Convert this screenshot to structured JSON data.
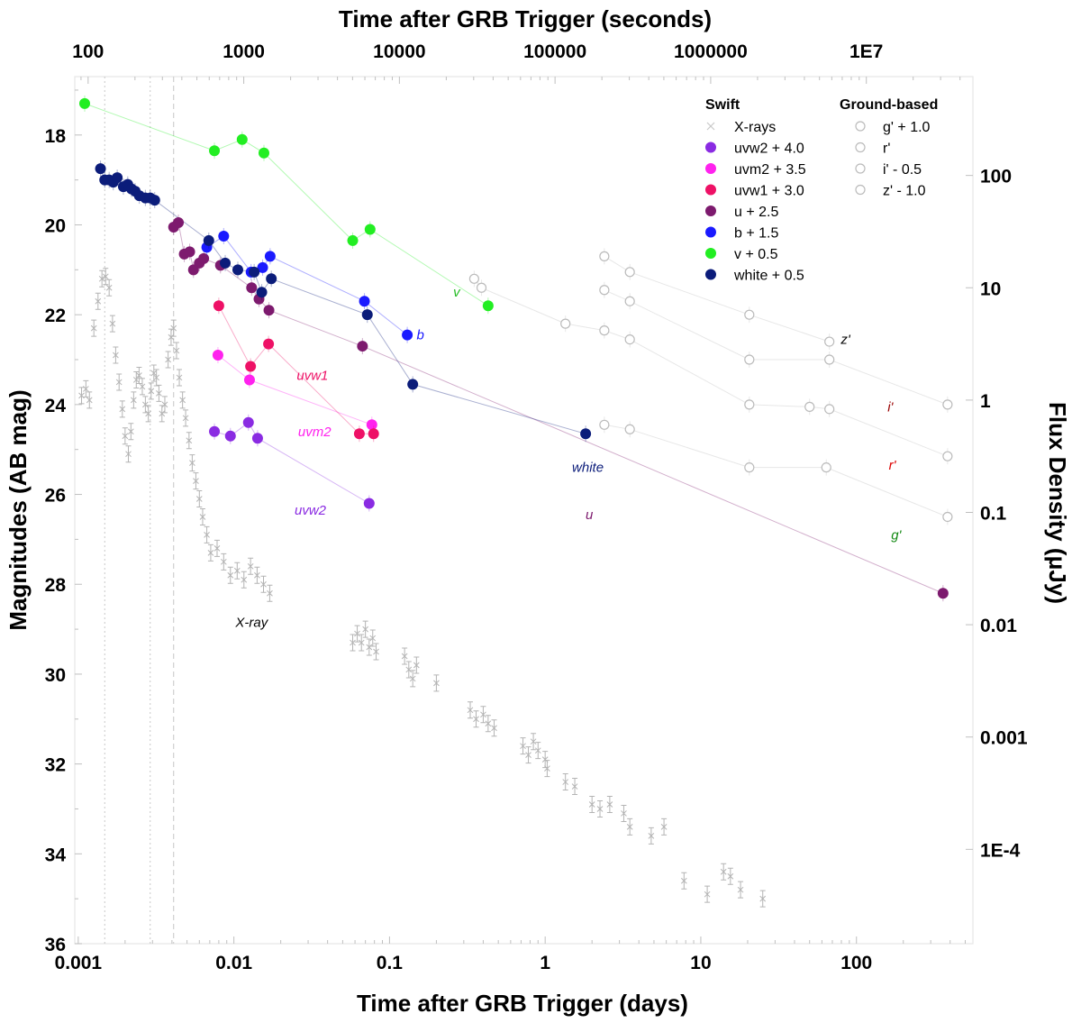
{
  "chart_data": {
    "type": "scatter",
    "title": "",
    "xlabel": "Time after GRB Trigger (days)",
    "x2label": "Time after GRB Trigger (seconds)",
    "ylabel": "Magnitudes (AB mag)",
    "y2label": "Flux Density (μJy)",
    "x_scale": "log",
    "xlim": [
      0.00095,
      560
    ],
    "ylim": [
      36,
      16.7
    ],
    "y_inverted": true,
    "x_ticks": [
      0.001,
      0.01,
      0.1,
      1,
      10,
      100
    ],
    "x_tick_labels": [
      "0.001",
      "0.01",
      "0.1",
      "1",
      "10",
      "100"
    ],
    "x2_ticks_seconds": [
      100,
      1000,
      10000,
      100000,
      1000000,
      10000000
    ],
    "x2_tick_labels": [
      "100",
      "1000",
      "10000",
      "100000",
      "1000000",
      "1E7"
    ],
    "y_ticks": [
      18,
      20,
      22,
      24,
      26,
      28,
      30,
      32,
      34,
      36
    ],
    "y_tick_labels": [
      "18",
      "20",
      "22",
      "24",
      "26",
      "28",
      "30",
      "32",
      "34",
      "36"
    ],
    "y2_ticks_mag": [
      18.9,
      21.4,
      23.9,
      26.4,
      28.9,
      31.4,
      33.9
    ],
    "y2_tick_labels": [
      "100",
      "10",
      "1",
      "0.1",
      "0.01",
      "0.001",
      "1E-4"
    ],
    "vertical_lines_days": [
      0.00148,
      0.0029,
      0.0041
    ],
    "legend_placement": "top-right",
    "legend_groups": [
      {
        "title": "Swift",
        "entries": [
          {
            "label": "X-rays",
            "marker": "x",
            "color": "#c8c8c8"
          },
          {
            "label": "uvw2 + 4.0",
            "marker": "filled-circle",
            "color": "#8a2be2"
          },
          {
            "label": "uvm2 + 3.5",
            "marker": "filled-circle",
            "color": "#ff22ee"
          },
          {
            "label": "uvw1 + 3.0",
            "marker": "filled-circle",
            "color": "#ee1166"
          },
          {
            "label": "u + 2.5",
            "marker": "filled-circle",
            "color": "#7d1a6e"
          },
          {
            "label": "b + 1.5",
            "marker": "filled-circle",
            "color": "#1a1aff"
          },
          {
            "label": "v + 0.5",
            "marker": "filled-circle",
            "color": "#22ee22"
          },
          {
            "label": "white + 0.5",
            "marker": "filled-circle",
            "color": "#0b1c7a"
          }
        ]
      },
      {
        "title": "Ground-based",
        "entries": [
          {
            "label": "g' + 1.0",
            "marker": "open-circle",
            "color": "#bbbbbb"
          },
          {
            "label": "r'",
            "marker": "open-circle",
            "color": "#bbbbbb"
          },
          {
            "label": "i' - 0.5",
            "marker": "open-circle",
            "color": "#bbbbbb"
          },
          {
            "label": "z' - 1.0",
            "marker": "open-circle",
            "color": "#bbbbbb"
          }
        ]
      }
    ],
    "series": [
      {
        "name": "uvw2 + 4.0",
        "color": "#8a2be2",
        "marker": "filled-circle",
        "points": [
          [
            0.0075,
            24.6
          ],
          [
            0.0095,
            24.7
          ],
          [
            0.0124,
            24.4
          ],
          [
            0.0142,
            24.75
          ],
          [
            0.074,
            26.2
          ]
        ]
      },
      {
        "name": "uvm2 + 3.5",
        "color": "#ff22ee",
        "marker": "filled-circle",
        "points": [
          [
            0.0079,
            22.9
          ],
          [
            0.0126,
            23.45
          ],
          [
            0.077,
            24.45
          ]
        ]
      },
      {
        "name": "uvw1 + 3.0",
        "color": "#ee1166",
        "marker": "filled-circle",
        "points": [
          [
            0.008,
            21.8
          ],
          [
            0.0128,
            23.15
          ],
          [
            0.0167,
            22.65
          ],
          [
            0.064,
            24.65
          ],
          [
            0.079,
            24.65
          ]
        ]
      },
      {
        "name": "u + 2.5",
        "color": "#7d1a6e",
        "marker": "filled-circle",
        "points": [
          [
            0.0041,
            20.05
          ],
          [
            0.0044,
            19.95
          ],
          [
            0.0048,
            20.65
          ],
          [
            0.0052,
            20.6
          ],
          [
            0.0055,
            21.0
          ],
          [
            0.006,
            20.85
          ],
          [
            0.0064,
            20.75
          ],
          [
            0.0082,
            20.9
          ],
          [
            0.013,
            21.4
          ],
          [
            0.0145,
            21.65
          ],
          [
            0.0168,
            21.9
          ],
          [
            0.067,
            22.7
          ],
          [
            360,
            28.2
          ]
        ]
      },
      {
        "name": "b + 1.5",
        "color": "#1a1aff",
        "marker": "filled-circle",
        "points": [
          [
            0.0067,
            20.5
          ],
          [
            0.0086,
            20.25
          ],
          [
            0.0129,
            21.05
          ],
          [
            0.0153,
            20.95
          ],
          [
            0.0171,
            20.7
          ],
          [
            0.069,
            21.7
          ],
          [
            0.13,
            22.45
          ]
        ]
      },
      {
        "name": "v + 0.5",
        "color": "#22ee22",
        "marker": "filled-circle",
        "points": [
          [
            0.0011,
            17.3
          ],
          [
            0.0075,
            18.35
          ],
          [
            0.0113,
            18.1
          ],
          [
            0.0156,
            18.4
          ],
          [
            0.058,
            20.35
          ],
          [
            0.075,
            20.1
          ],
          [
            0.43,
            21.8
          ]
        ]
      },
      {
        "name": "white + 0.5",
        "color": "#0b1c7a",
        "marker": "filled-circle",
        "points": [
          [
            0.00139,
            18.75
          ],
          [
            0.00148,
            19.0
          ],
          [
            0.00158,
            19.0
          ],
          [
            0.00168,
            19.05
          ],
          [
            0.00178,
            18.95
          ],
          [
            0.00195,
            19.15
          ],
          [
            0.00208,
            19.1
          ],
          [
            0.0022,
            19.2
          ],
          [
            0.00232,
            19.25
          ],
          [
            0.00247,
            19.35
          ],
          [
            0.0027,
            19.4
          ],
          [
            0.0029,
            19.4
          ],
          [
            0.0031,
            19.45
          ],
          [
            0.0069,
            20.35
          ],
          [
            0.0088,
            20.85
          ],
          [
            0.0106,
            21.0
          ],
          [
            0.0135,
            21.05
          ],
          [
            0.0151,
            21.5
          ],
          [
            0.0174,
            21.2
          ],
          [
            0.072,
            22.0
          ],
          [
            0.141,
            23.55
          ],
          [
            1.82,
            24.65
          ]
        ]
      },
      {
        "name": "g' + 1.0",
        "color": "#bbbbbb",
        "marker": "open-circle",
        "points": [
          [
            2.4,
            24.45
          ],
          [
            3.5,
            24.55
          ],
          [
            20.5,
            25.4
          ],
          [
            64,
            25.4
          ],
          [
            385,
            26.5
          ]
        ]
      },
      {
        "name": "r'",
        "color": "#bbbbbb",
        "marker": "open-circle",
        "points": [
          [
            0.35,
            21.2
          ],
          [
            0.39,
            21.4
          ],
          [
            1.35,
            22.2
          ],
          [
            2.4,
            22.35
          ],
          [
            3.5,
            22.55
          ],
          [
            20.5,
            24.0
          ],
          [
            50,
            24.05
          ],
          [
            67,
            24.1
          ],
          [
            385,
            25.15
          ]
        ]
      },
      {
        "name": "i' - 0.5",
        "color": "#bbbbbb",
        "marker": "open-circle",
        "points": [
          [
            2.4,
            21.45
          ],
          [
            3.5,
            21.7
          ],
          [
            20.5,
            23.0
          ],
          [
            67,
            23.0
          ],
          [
            385,
            24.0
          ]
        ]
      },
      {
        "name": "z' - 1.0",
        "color": "#bbbbbb",
        "marker": "open-circle",
        "points": [
          [
            2.4,
            20.7
          ],
          [
            3.5,
            21.05
          ],
          [
            20.5,
            22.0
          ],
          [
            67,
            22.6
          ]
        ]
      },
      {
        "name": "X-rays",
        "color": "#b4b4b4",
        "marker": "x",
        "points": [
          [
            0.00105,
            23.8
          ],
          [
            0.00112,
            23.65
          ],
          [
            0.00118,
            23.9
          ],
          [
            0.00126,
            22.3
          ],
          [
            0.00134,
            21.7
          ],
          [
            0.00142,
            21.2
          ],
          [
            0.0015,
            21.15
          ],
          [
            0.00158,
            21.4
          ],
          [
            0.00166,
            22.2
          ],
          [
            0.00174,
            22.9
          ],
          [
            0.00183,
            23.5
          ],
          [
            0.00192,
            24.1
          ],
          [
            0.002,
            24.7
          ],
          [
            0.0021,
            25.1
          ],
          [
            0.00218,
            24.6
          ],
          [
            0.00227,
            23.9
          ],
          [
            0.00236,
            23.45
          ],
          [
            0.00246,
            23.35
          ],
          [
            0.00258,
            23.6
          ],
          [
            0.0027,
            24.0
          ],
          [
            0.00282,
            24.2
          ],
          [
            0.00294,
            23.7
          ],
          [
            0.00306,
            23.3
          ],
          [
            0.00318,
            23.4
          ],
          [
            0.0033,
            23.75
          ],
          [
            0.00345,
            24.2
          ],
          [
            0.0036,
            24.0
          ],
          [
            0.00378,
            23.0
          ],
          [
            0.00395,
            22.5
          ],
          [
            0.0041,
            22.3
          ],
          [
            0.00428,
            22.8
          ],
          [
            0.00446,
            23.4
          ],
          [
            0.00468,
            23.9
          ],
          [
            0.0049,
            24.3
          ],
          [
            0.00515,
            24.8
          ],
          [
            0.0054,
            25.3
          ],
          [
            0.0057,
            25.7
          ],
          [
            0.006,
            26.1
          ],
          [
            0.0063,
            26.5
          ],
          [
            0.0067,
            26.9
          ],
          [
            0.0071,
            27.3
          ],
          [
            0.0078,
            27.2
          ],
          [
            0.0086,
            27.5
          ],
          [
            0.0095,
            27.8
          ],
          [
            0.0105,
            27.7
          ],
          [
            0.0116,
            27.9
          ],
          [
            0.0128,
            27.6
          ],
          [
            0.0141,
            27.8
          ],
          [
            0.0155,
            28.0
          ],
          [
            0.017,
            28.2
          ],
          [
            0.058,
            29.3
          ],
          [
            0.062,
            29.1
          ],
          [
            0.066,
            29.3
          ],
          [
            0.07,
            29.0
          ],
          [
            0.074,
            29.4
          ],
          [
            0.078,
            29.2
          ],
          [
            0.082,
            29.5
          ],
          [
            0.125,
            29.6
          ],
          [
            0.133,
            29.9
          ],
          [
            0.141,
            30.1
          ],
          [
            0.149,
            29.8
          ],
          [
            0.2,
            30.2
          ],
          [
            0.33,
            30.8
          ],
          [
            0.36,
            31.0
          ],
          [
            0.4,
            30.9
          ],
          [
            0.43,
            31.1
          ],
          [
            0.47,
            31.2
          ],
          [
            0.72,
            31.6
          ],
          [
            0.78,
            31.8
          ],
          [
            0.84,
            31.5
          ],
          [
            0.9,
            31.7
          ],
          [
            1.0,
            31.9
          ],
          [
            1.03,
            32.1
          ],
          [
            1.35,
            32.4
          ],
          [
            1.55,
            32.5
          ],
          [
            2.0,
            32.9
          ],
          [
            2.25,
            33.0
          ],
          [
            2.6,
            32.9
          ],
          [
            3.2,
            33.1
          ],
          [
            3.5,
            33.4
          ],
          [
            4.8,
            33.6
          ],
          [
            5.8,
            33.4
          ],
          [
            7.8,
            34.6
          ],
          [
            11,
            34.9
          ],
          [
            14,
            34.4
          ],
          [
            15.5,
            34.5
          ],
          [
            18,
            34.8
          ],
          [
            25,
            35.0
          ]
        ]
      }
    ],
    "annotations": [
      {
        "text": "uvw2",
        "x": 0.031,
        "y": 26.45,
        "color": "#8a2be2"
      },
      {
        "text": "uvm2",
        "x": 0.033,
        "y": 24.7,
        "color": "#ff22ee"
      },
      {
        "text": "uvw1",
        "x": 0.032,
        "y": 23.45,
        "color": "#ee1166"
      },
      {
        "text": "u",
        "x": 1.92,
        "y": 26.55,
        "color": "#7d1a6e"
      },
      {
        "text": "b",
        "x": 0.158,
        "y": 22.55,
        "color": "#1a1aff"
      },
      {
        "text": "v",
        "x": 0.27,
        "y": 21.6,
        "color": "#22bb22"
      },
      {
        "text": "white",
        "x": 1.88,
        "y": 25.5,
        "color": "#0b1c7a"
      },
      {
        "text": "X-ray",
        "x": 0.013,
        "y": 28.95,
        "color": "#000000"
      },
      {
        "text": "z'",
        "x": 85,
        "y": 22.65,
        "color": "#000000"
      },
      {
        "text": "i'",
        "x": 165,
        "y": 24.15,
        "color": "#990000"
      },
      {
        "text": "r'",
        "x": 170,
        "y": 25.45,
        "color": "#dd0000"
      },
      {
        "text": "g'",
        "x": 180,
        "y": 27.0,
        "color": "#118811"
      }
    ]
  }
}
